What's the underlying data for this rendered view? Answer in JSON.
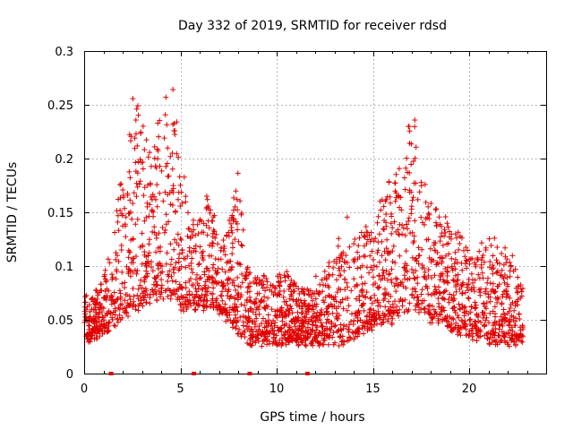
{
  "chart_data": {
    "type": "scatter",
    "title": "Day 332 of 2019, SRMTID for receiver rdsd",
    "xlabel": "GPS time / hours",
    "ylabel": "SRMTID / TECUs",
    "xlim": [
      0,
      24
    ],
    "ylim": [
      0,
      0.3
    ],
    "xticks": [
      0,
      5,
      10,
      15,
      20
    ],
    "yticks": [
      0,
      0.05,
      0.1,
      0.15,
      0.2,
      0.25,
      0.3
    ],
    "xtick_labels": [
      "0",
      "5",
      "10",
      "15",
      "20"
    ],
    "ytick_labels": [
      "0",
      "0.05",
      "0.1",
      "0.15",
      "0.2",
      "0.25",
      "0.3"
    ],
    "grid": true,
    "marker": "+",
    "color": "#e00000",
    "envelope": {
      "x": [
        0.0,
        0.5,
        1.0,
        1.5,
        2.0,
        2.5,
        3.0,
        3.5,
        4.0,
        4.5,
        5.0,
        5.5,
        6.0,
        6.5,
        7.0,
        7.5,
        8.0,
        8.5,
        9.0,
        9.5,
        10.0,
        10.5,
        11.0,
        11.5,
        12.0,
        12.5,
        13.0,
        13.5,
        14.0,
        14.5,
        15.0,
        15.5,
        16.0,
        16.5,
        17.0,
        17.5,
        18.0,
        18.5,
        19.0,
        19.5,
        20.0,
        20.5,
        21.0,
        21.5,
        22.0,
        22.5,
        22.8
      ],
      "low": [
        0.03,
        0.035,
        0.04,
        0.045,
        0.05,
        0.06,
        0.06,
        0.07,
        0.07,
        0.07,
        0.06,
        0.06,
        0.06,
        0.06,
        0.06,
        0.05,
        0.04,
        0.03,
        0.03,
        0.03,
        0.03,
        0.03,
        0.03,
        0.03,
        0.03,
        0.03,
        0.03,
        0.03,
        0.035,
        0.04,
        0.045,
        0.05,
        0.05,
        0.06,
        0.06,
        0.06,
        0.05,
        0.05,
        0.04,
        0.04,
        0.035,
        0.035,
        0.03,
        0.03,
        0.03,
        0.03,
        0.03
      ],
      "high": [
        0.08,
        0.07,
        0.09,
        0.13,
        0.19,
        0.26,
        0.24,
        0.2,
        0.25,
        0.28,
        0.21,
        0.14,
        0.15,
        0.18,
        0.12,
        0.14,
        0.19,
        0.1,
        0.09,
        0.09,
        0.09,
        0.1,
        0.08,
        0.08,
        0.09,
        0.1,
        0.11,
        0.15,
        0.14,
        0.13,
        0.14,
        0.17,
        0.19,
        0.2,
        0.25,
        0.21,
        0.16,
        0.15,
        0.14,
        0.13,
        0.12,
        0.12,
        0.13,
        0.12,
        0.11,
        0.1,
        0.08
      ]
    },
    "point_count": 2600,
    "bottom_markers_x": [
      1.4,
      5.7,
      8.6,
      11.6
    ]
  }
}
